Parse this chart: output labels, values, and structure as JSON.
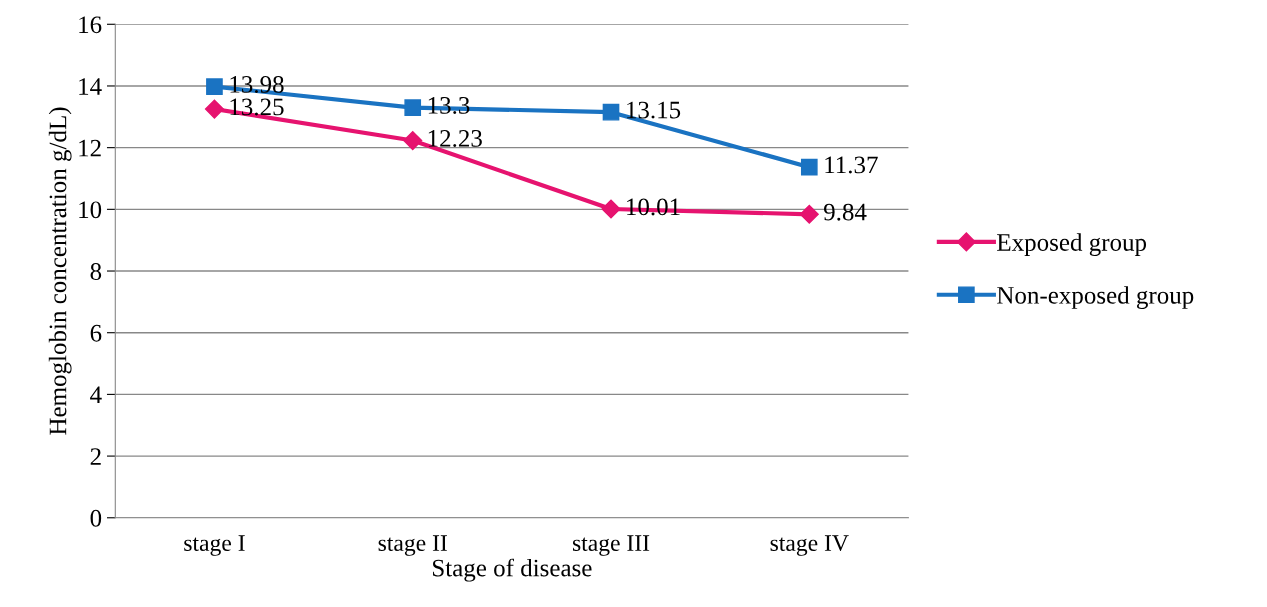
{
  "chart_data": {
    "type": "line",
    "xlabel": "Stage of disease",
    "ylabel": "Hemoglobin concentration g/dL)",
    "categories": [
      "stage I",
      "stage II",
      "stage III",
      "stage IV"
    ],
    "series": [
      {
        "name": "Exposed group",
        "color": "#e6136f",
        "marker": "diamond",
        "values": [
          13.25,
          12.23,
          10.01,
          9.84
        ]
      },
      {
        "name": "Non-exposed group",
        "color": "#1a73c2",
        "marker": "square",
        "values": [
          13.98,
          13.3,
          13.15,
          11.37
        ]
      }
    ],
    "ylim": [
      0,
      16
    ],
    "yticks": [
      0,
      2,
      4,
      6,
      8,
      10,
      12,
      14,
      16
    ],
    "grid": "y",
    "legend": "right",
    "data_labels": true,
    "line_style": "solid"
  }
}
